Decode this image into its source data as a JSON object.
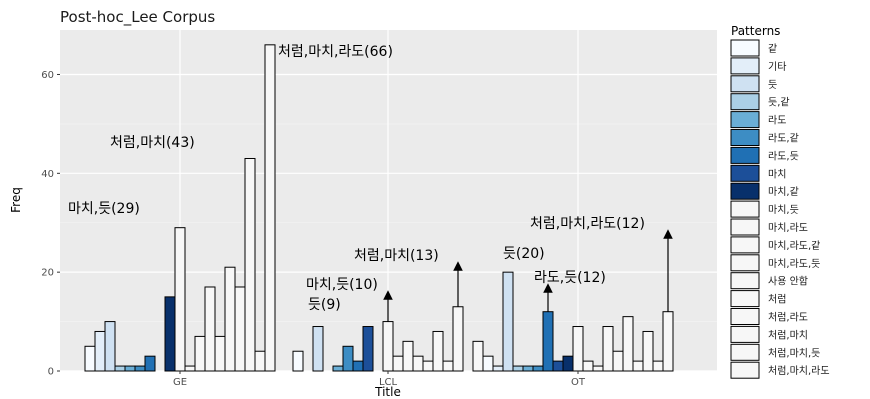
{
  "chart_data": {
    "type": "bar",
    "title": "Post-hoc_Lee Corpus",
    "xlabel": "Title",
    "ylabel": "Freq",
    "categories": [
      "GE",
      "LCL",
      "OT"
    ],
    "ylim": [
      0,
      69
    ],
    "yticks": [
      0,
      20,
      40,
      60
    ],
    "grid": true,
    "legend": {
      "title": "Patterns",
      "placement": "right"
    },
    "patterns": [
      {
        "name": "같",
        "color": "#f7fbff"
      },
      {
        "name": "기타",
        "color": "#e3eef9"
      },
      {
        "name": "듯",
        "color": "#cfe1f2"
      },
      {
        "name": "듯,같",
        "color": "#abd0e6"
      },
      {
        "name": "라도",
        "color": "#6aaed6"
      },
      {
        "name": "라도,같",
        "color": "#3d8dc4"
      },
      {
        "name": "라도,듯",
        "color": "#2070b4"
      },
      {
        "name": "마치",
        "color": "#1c4f99"
      },
      {
        "name": "마치,같",
        "color": "#08306b"
      },
      {
        "name": "마치,듯",
        "color": "#f7f7f7"
      },
      {
        "name": "마치,라도",
        "color": "#f7f7f7"
      },
      {
        "name": "마치,라도,같",
        "color": "#f7f7f7"
      },
      {
        "name": "마치,라도,듯",
        "color": "#f7f7f7"
      },
      {
        "name": "사용 안함",
        "color": "#f7f7f7"
      },
      {
        "name": "처럼",
        "color": "#f7f7f7"
      },
      {
        "name": "처럼,라도",
        "color": "#f7f7f7"
      },
      {
        "name": "처럼,마치",
        "color": "#f7f7f7"
      },
      {
        "name": "처럼,마치,듯",
        "color": "#f7f7f7"
      },
      {
        "name": "처럼,마치,라도",
        "color": "#f7f7f7"
      }
    ],
    "series_values": {
      "GE": [
        5,
        8,
        10,
        1,
        1,
        1,
        3,
        0,
        15,
        29,
        1,
        7,
        17,
        7,
        21,
        17,
        43,
        4,
        66
      ],
      "LCL": [
        4,
        0,
        9,
        0,
        1,
        5,
        2,
        9,
        0,
        10,
        3,
        6,
        3,
        2,
        8,
        2,
        13,
        0,
        6
      ],
      "OT": [
        3,
        1,
        20,
        1,
        1,
        1,
        12,
        2,
        3,
        9,
        2,
        1,
        9,
        4,
        11,
        2,
        8,
        2,
        12
      ]
    },
    "annotations": [
      {
        "category": "GE",
        "pattern_index": 9,
        "text": "마치,듯(29)",
        "arrow": false
      },
      {
        "category": "GE",
        "pattern_index": 16,
        "text": "처럼,마치(43)",
        "arrow": false
      },
      {
        "category": "GE",
        "pattern_index": 18,
        "text": "처럼,마치,라도(66)",
        "arrow": false
      },
      {
        "category": "LCL",
        "pattern_index": 2,
        "text": "듯(9)",
        "arrow": false
      },
      {
        "category": "LCL",
        "pattern_index": 9,
        "text": "마치,듯(10)",
        "arrow": true
      },
      {
        "category": "LCL",
        "pattern_index": 16,
        "text": "처럼,마치(13)",
        "arrow": true
      },
      {
        "category": "OT",
        "pattern_index": 2,
        "text": "듯(20)",
        "arrow": false
      },
      {
        "category": "OT",
        "pattern_index": 6,
        "text": "라도,듯(12)",
        "arrow": true
      },
      {
        "category": "OT",
        "pattern_index": 18,
        "text": "처럼,마치,라도(12)",
        "arrow": true
      }
    ]
  }
}
